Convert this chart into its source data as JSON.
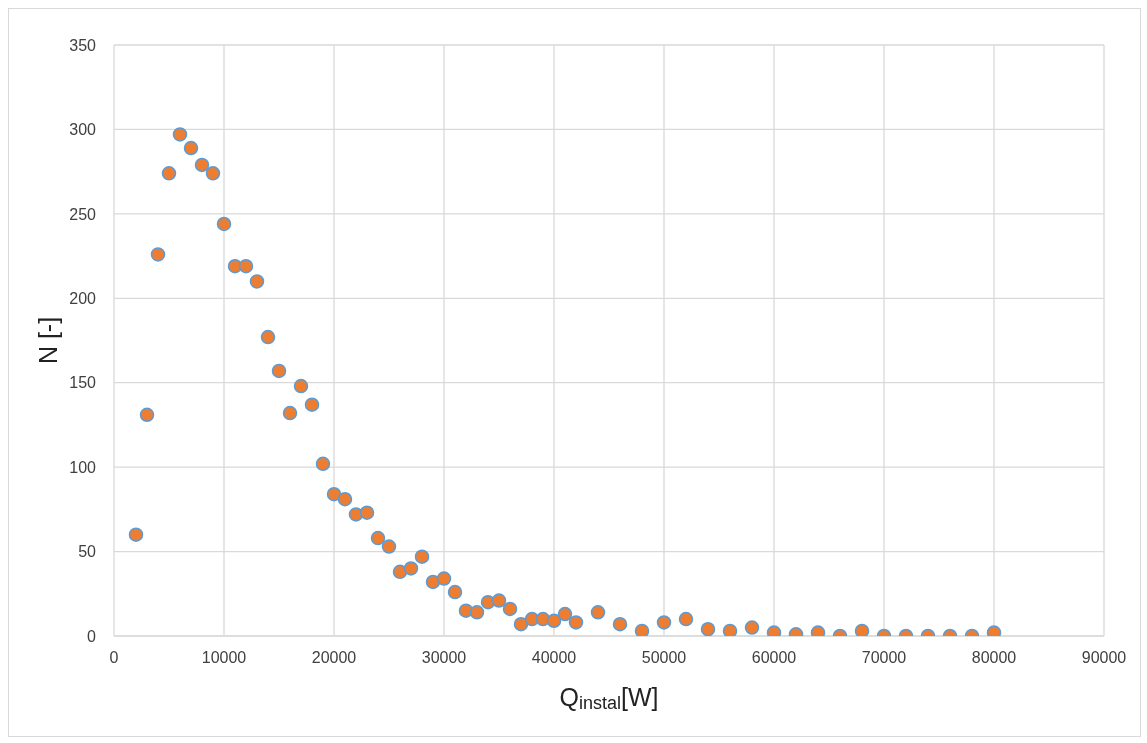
{
  "chart_data": {
    "type": "scatter",
    "xlabel": "Q$_{instal}$[W]",
    "ylabel": "N [-]",
    "x": [
      2000,
      3000,
      4000,
      5000,
      6000,
      7000,
      8000,
      9000,
      10000,
      11000,
      12000,
      13000,
      14000,
      15000,
      16000,
      17000,
      18000,
      19000,
      20000,
      21000,
      22000,
      23000,
      24000,
      25000,
      26000,
      27000,
      28000,
      29000,
      30000,
      31000,
      32000,
      33000,
      34000,
      35000,
      36000,
      37000,
      38000,
      39000,
      40000,
      41000,
      42000,
      44000,
      46000,
      48000,
      50000,
      52000,
      54000,
      56000,
      58000,
      60000,
      62000,
      64000,
      66000,
      68000,
      70000,
      72000,
      74000,
      76000,
      78000,
      80000
    ],
    "series": [
      {
        "color": "#ed7d31",
        "values": [
          60,
          131,
          226,
          274,
          297,
          289,
          279,
          274,
          244,
          219,
          219,
          210,
          177,
          157,
          132,
          148,
          137,
          102,
          84,
          81,
          72,
          73,
          58,
          53,
          38,
          40,
          47,
          32,
          34,
          26,
          15,
          14,
          20,
          21,
          16,
          7,
          10,
          10,
          9,
          13,
          8,
          14,
          7,
          3,
          8,
          10,
          4,
          3,
          5,
          2,
          1,
          2,
          0,
          3,
          0,
          0,
          0,
          0,
          0,
          2
        ]
      }
    ],
    "xlim": [
      0,
      90000
    ],
    "xticks": [
      0,
      10000,
      20000,
      30000,
      40000,
      50000,
      60000,
      70000,
      80000,
      90000
    ],
    "ylim": [
      0,
      350
    ],
    "yticks": [
      0,
      50,
      100,
      150,
      200,
      250,
      300,
      350
    ],
    "grid": true,
    "legend": false,
    "marker": "circle"
  }
}
